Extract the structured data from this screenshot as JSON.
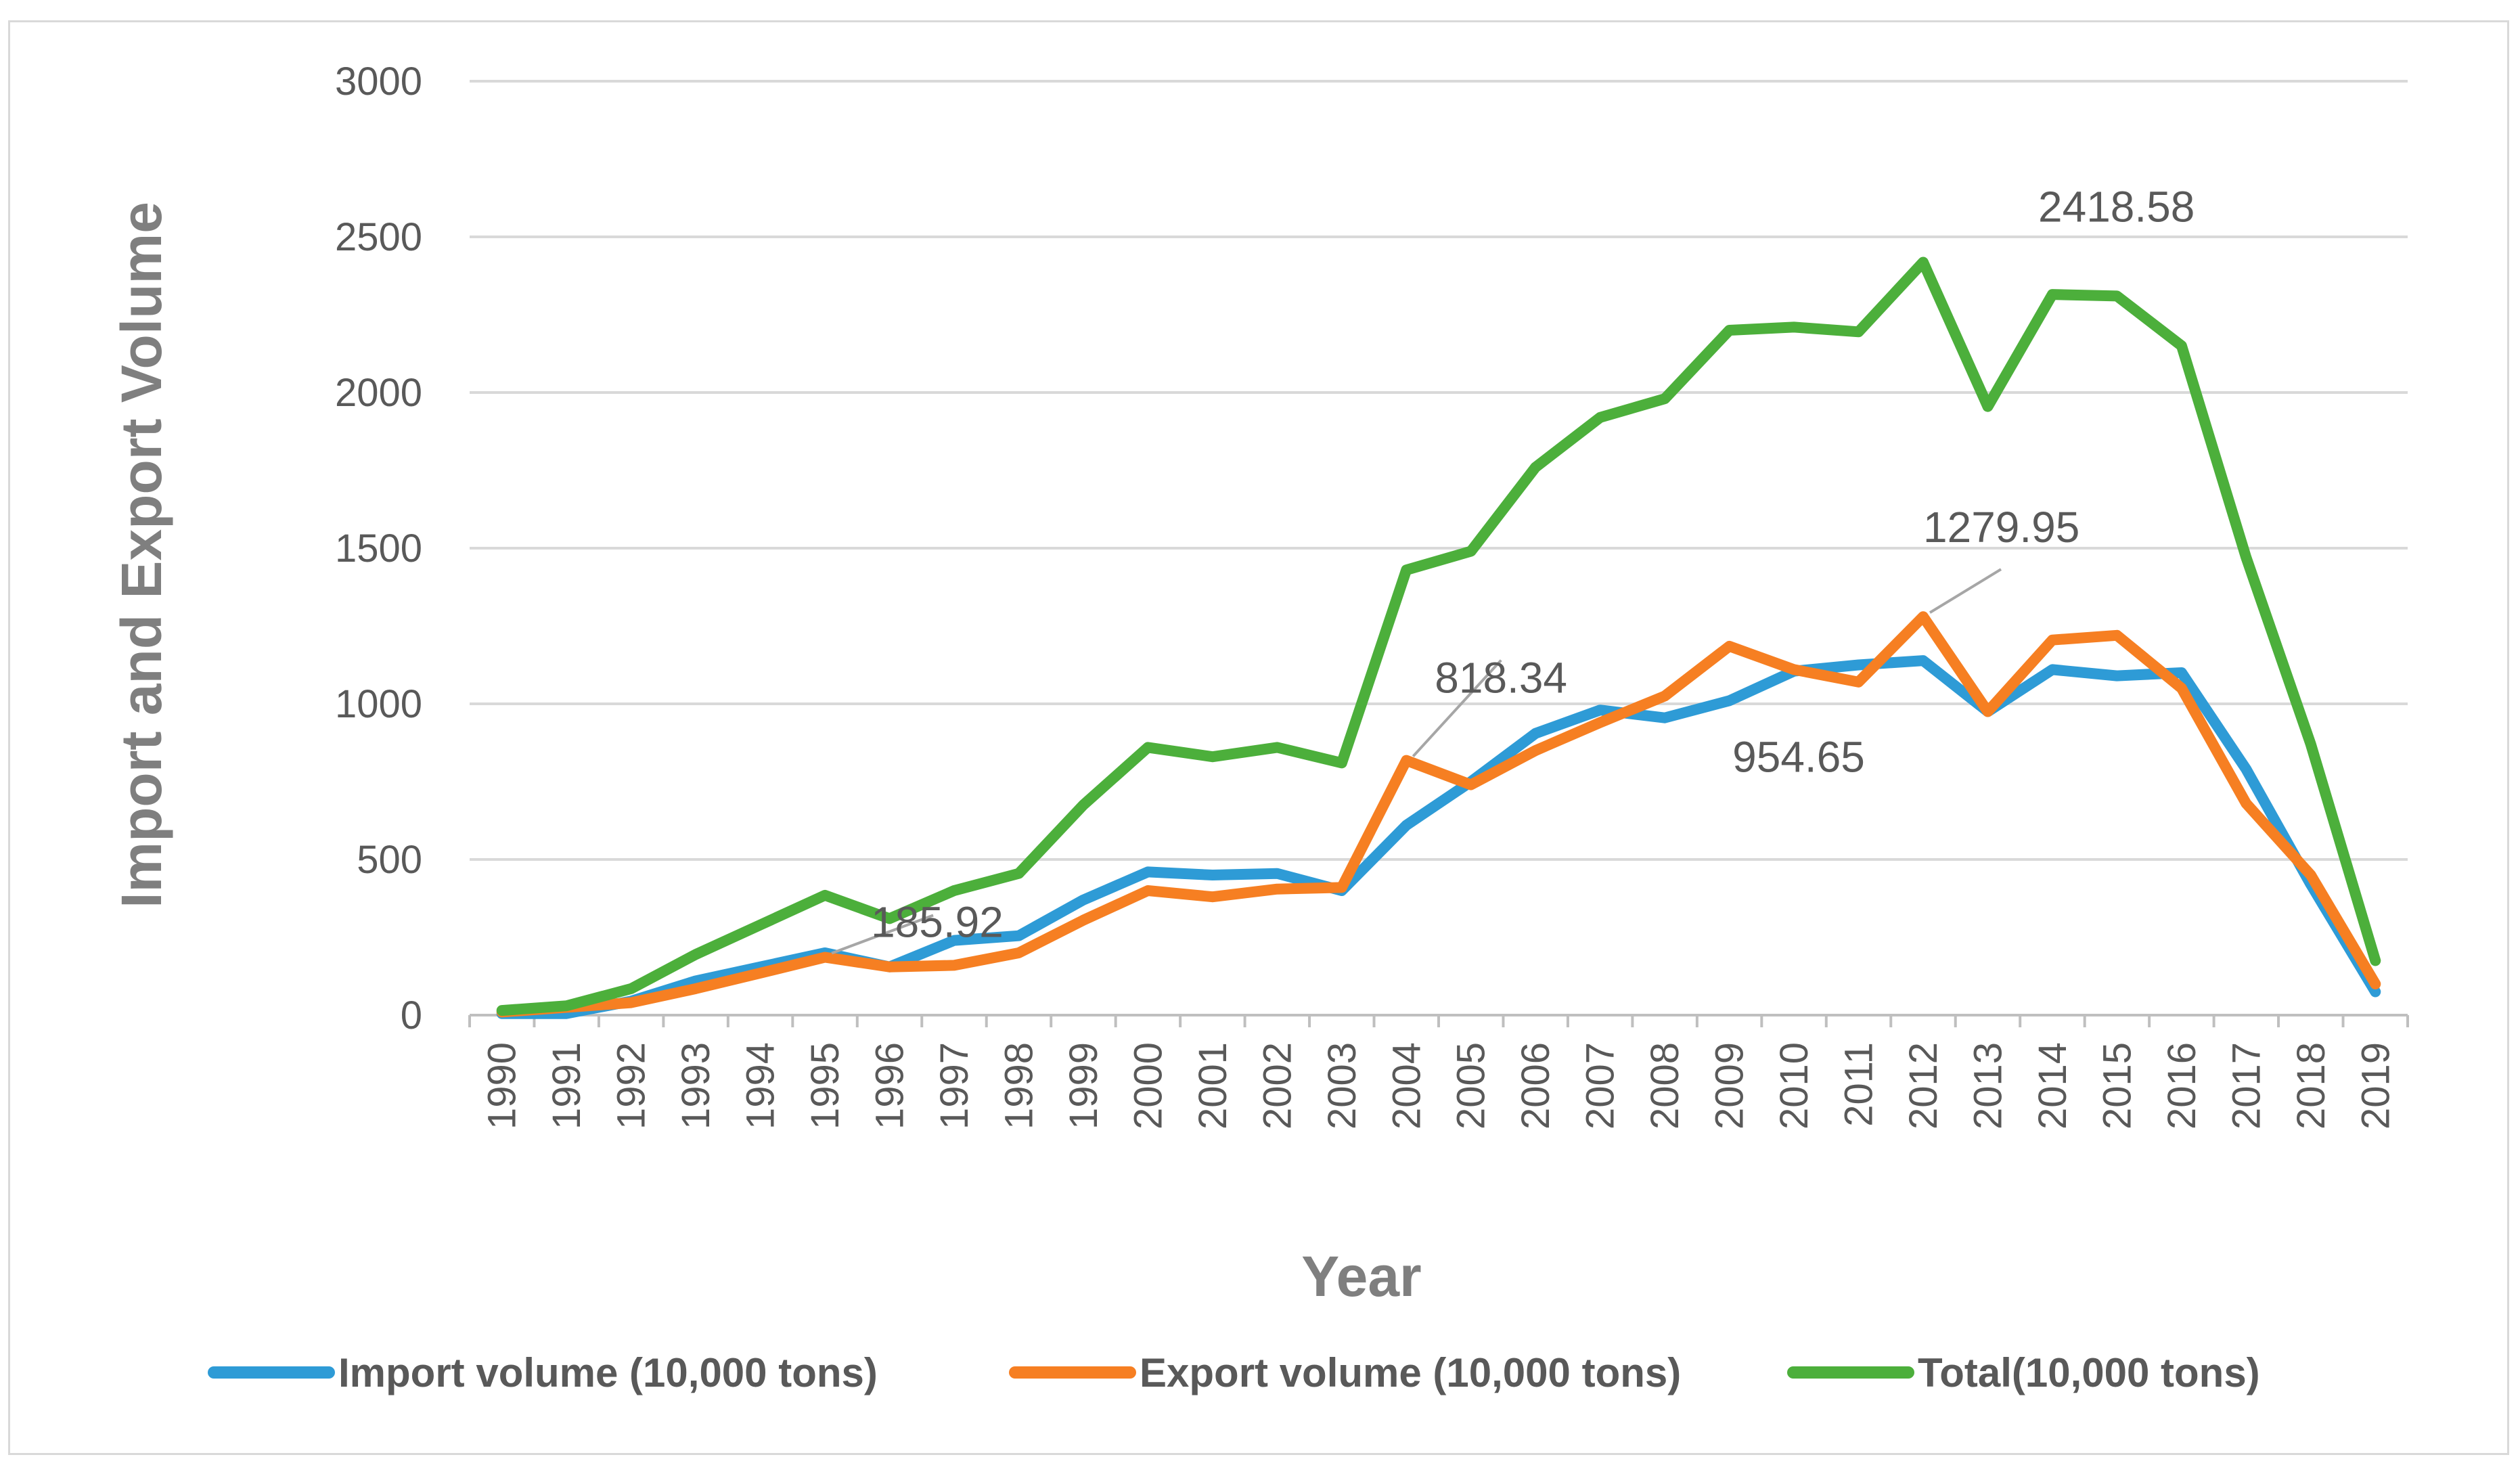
{
  "chart_data": {
    "type": "line",
    "title": "",
    "xlabel": "Year",
    "ylabel": "Import and Export Volume",
    "ylim": [
      0,
      3000
    ],
    "yticks": [
      0,
      500,
      1000,
      1500,
      2000,
      2500,
      3000
    ],
    "grid": true,
    "legend_position": "bottom",
    "categories": [
      "1990",
      "1991",
      "1992",
      "1993",
      "1994",
      "1995",
      "1996",
      "1997",
      "1998",
      "1999",
      "2000",
      "2001",
      "2002",
      "2003",
      "2004",
      "2005",
      "2006",
      "2007",
      "2008",
      "2009",
      "2010",
      "2011",
      "2012",
      "2013",
      "2014",
      "2015",
      "2016",
      "2017",
      "2018",
      "2019"
    ],
    "series": [
      {
        "name": "Import volume (10,000 tons)",
        "color": "#2e9bd6",
        "values": [
          5,
          5,
          45,
          110,
          155,
          200,
          155,
          240,
          255,
          370,
          460,
          450,
          455,
          400,
          610,
          750,
          905,
          980,
          955,
          1010,
          1105,
          1125,
          1139,
          975,
          1110,
          1090,
          1100,
          790,
          420,
          75
        ]
      },
      {
        "name": "Export volume (10,000 tons)",
        "color": "#f67f22",
        "values": [
          10,
          25,
          40,
          85,
          135,
          185.92,
          155,
          160,
          200,
          305,
          400,
          380,
          405,
          410,
          818.34,
          740,
          850,
          940,
          1025,
          1185,
          1110,
          1070,
          1279.95,
          975,
          1205,
          1220,
          1050,
          680,
          450,
          100
        ]
      },
      {
        "name": "Total(10,000 tons)",
        "color": "#4caf3b",
        "values": [
          15,
          30,
          85,
          195,
          290,
          385,
          310,
          400,
          455,
          675,
          860,
          830,
          860,
          810,
          1430,
          1490,
          1760,
          1920,
          1980,
          2200,
          2210,
          2195,
          2418.58,
          1955,
          2315,
          2310,
          2150,
          1470,
          870,
          175
        ]
      }
    ],
    "annotations": [
      {
        "text": "185.92",
        "series": 1,
        "category": "1995"
      },
      {
        "text": "818.34",
        "series": 1,
        "category": "2004"
      },
      {
        "text": "954.65",
        "series": 0,
        "category": "2008"
      },
      {
        "text": "1279.95",
        "series": 1,
        "category": "2012"
      },
      {
        "text": "2418.58",
        "series": 2,
        "category": "2012"
      }
    ]
  }
}
